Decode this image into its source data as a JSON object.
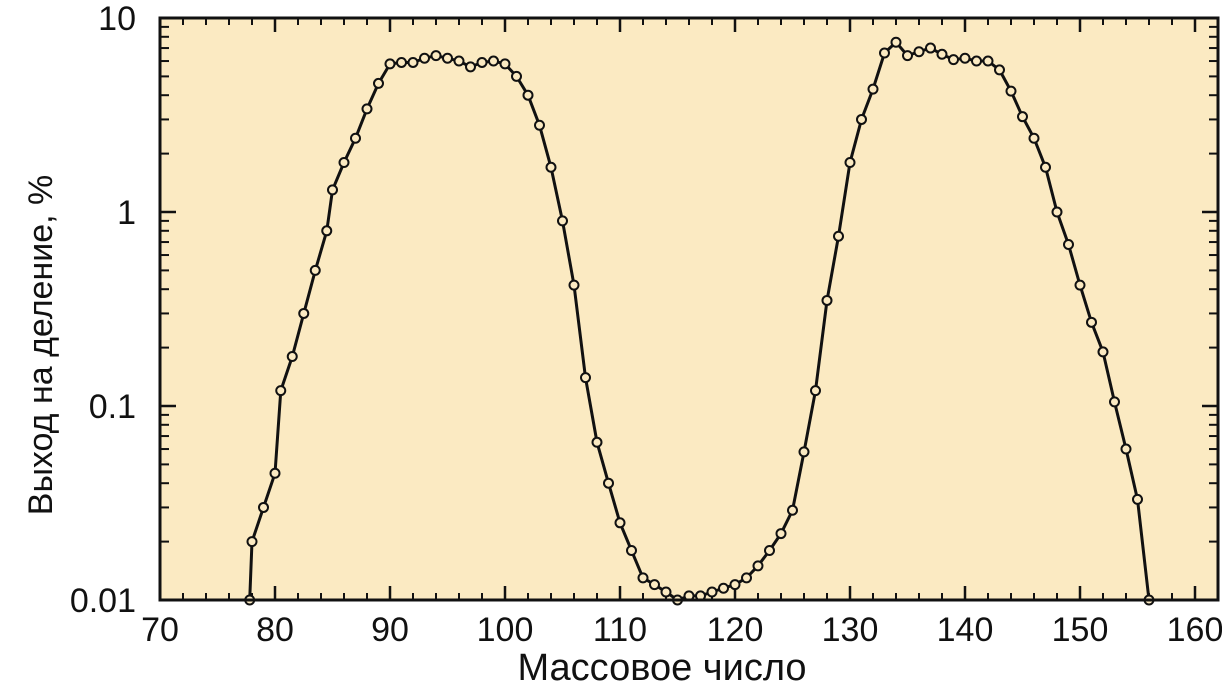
{
  "chart_data": {
    "type": "line",
    "title": "",
    "xlabel": "Массовое число",
    "ylabel": "Выход на деление, %",
    "xlim": [
      70,
      162
    ],
    "ylim": [
      0.01,
      10
    ],
    "yscale": "log",
    "x_ticks": [
      70,
      80,
      90,
      100,
      110,
      120,
      130,
      140,
      150,
      160
    ],
    "y_ticks": [
      0.01,
      0.1,
      1,
      10
    ],
    "x_tick_labels": [
      "70",
      "80",
      "90",
      "100",
      "110",
      "120",
      "130",
      "140",
      "150",
      "160"
    ],
    "y_tick_labels": [
      "0.01",
      "0.1",
      "1",
      "10"
    ],
    "grid": false,
    "background": "#fbeac2",
    "line_color": "#111111",
    "series": [
      {
        "points": [
          [
            77.8,
            0.01
          ],
          [
            78,
            0.02
          ],
          [
            79,
            0.03
          ],
          [
            80,
            0.045
          ],
          [
            80.5,
            0.12
          ],
          [
            81.5,
            0.18
          ],
          [
            82.5,
            0.3
          ],
          [
            83.5,
            0.5
          ],
          [
            84.5,
            0.8
          ],
          [
            85,
            1.3
          ],
          [
            86,
            1.8
          ],
          [
            87,
            2.4
          ],
          [
            88,
            3.4
          ],
          [
            89,
            4.6
          ],
          [
            90,
            5.8
          ],
          [
            91,
            5.9
          ],
          [
            92,
            5.9
          ],
          [
            93,
            6.2
          ],
          [
            94,
            6.4
          ],
          [
            95,
            6.2
          ],
          [
            96,
            6.0
          ],
          [
            97,
            5.6
          ],
          [
            98,
            5.9
          ],
          [
            99,
            6.0
          ],
          [
            100,
            5.8
          ],
          [
            101,
            5.0
          ],
          [
            102,
            4.0
          ],
          [
            103,
            2.8
          ],
          [
            104,
            1.7
          ],
          [
            105,
            0.9
          ],
          [
            106,
            0.42
          ],
          [
            107,
            0.14
          ],
          [
            108,
            0.065
          ],
          [
            109,
            0.04
          ],
          [
            110,
            0.025
          ],
          [
            111,
            0.018
          ],
          [
            112,
            0.013
          ],
          [
            113,
            0.012
          ],
          [
            114,
            0.011
          ],
          [
            115,
            0.01
          ],
          [
            116,
            0.0105
          ],
          [
            117,
            0.0105
          ],
          [
            118,
            0.011
          ],
          [
            119,
            0.0115
          ],
          [
            120,
            0.012
          ],
          [
            121,
            0.013
          ],
          [
            122,
            0.015
          ],
          [
            123,
            0.018
          ],
          [
            124,
            0.022
          ],
          [
            125,
            0.029
          ],
          [
            126,
            0.058
          ],
          [
            127,
            0.12
          ],
          [
            128,
            0.35
          ],
          [
            129,
            0.75
          ],
          [
            130,
            1.8
          ],
          [
            131,
            3.0
          ],
          [
            132,
            4.3
          ],
          [
            133,
            6.6
          ],
          [
            134,
            7.5
          ],
          [
            135,
            6.4
          ],
          [
            136,
            6.7
          ],
          [
            137,
            7.0
          ],
          [
            138,
            6.5
          ],
          [
            139,
            6.1
          ],
          [
            140,
            6.2
          ],
          [
            141,
            6.0
          ],
          [
            142,
            6.0
          ],
          [
            143,
            5.4
          ],
          [
            144,
            4.2
          ],
          [
            145,
            3.1
          ],
          [
            146,
            2.4
          ],
          [
            147,
            1.7
          ],
          [
            148,
            1.0
          ],
          [
            149,
            0.68
          ],
          [
            150,
            0.42
          ],
          [
            151,
            0.27
          ],
          [
            152,
            0.19
          ],
          [
            153,
            0.105
          ],
          [
            154,
            0.06
          ],
          [
            155,
            0.033
          ],
          [
            156,
            0.01
          ]
        ]
      }
    ]
  }
}
